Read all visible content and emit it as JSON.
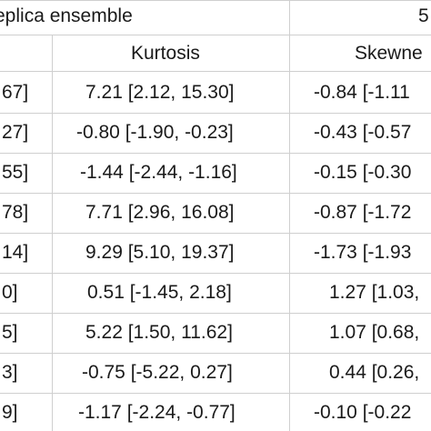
{
  "header": {
    "group_left": "eplica ensemble",
    "group_right": "5",
    "col_kurtosis": "Kurtosis",
    "col_skewness": "Skewne"
  },
  "rows": [
    {
      "left": "67]",
      "kurtosis": "7.21 [2.12, 15.30]",
      "skewness": "-0.84 [-1.11"
    },
    {
      "left": "27]",
      "kurtosis": "-0.80 [-1.90, -0.23]",
      "skewness": "-0.43 [-0.57"
    },
    {
      "left": "55]",
      "kurtosis": "-1.44 [-2.44, -1.16]",
      "skewness": "-0.15 [-0.30"
    },
    {
      "left": "78]",
      "kurtosis": "7.71 [2.96, 16.08]",
      "skewness": "-0.87 [-1.72"
    },
    {
      "left": "14]",
      "kurtosis": "9.29 [5.10, 19.37]",
      "skewness": "-1.73 [-1.93"
    },
    {
      "left": "0]",
      "kurtosis": "0.51 [-1.45, 2.18]",
      "skewness": "1.27 [1.03,"
    },
    {
      "left": "5]",
      "kurtosis": "5.22 [1.50, 11.62]",
      "skewness": "1.07 [0.68,"
    },
    {
      "left": "3]",
      "kurtosis": "-0.75 [-5.22, 0.27]",
      "skewness": "0.44 [0.26,"
    },
    {
      "left": "9]",
      "kurtosis": "-1.17 [-2.24, -0.77]",
      "skewness": "-0.10 [-0.22"
    }
  ]
}
